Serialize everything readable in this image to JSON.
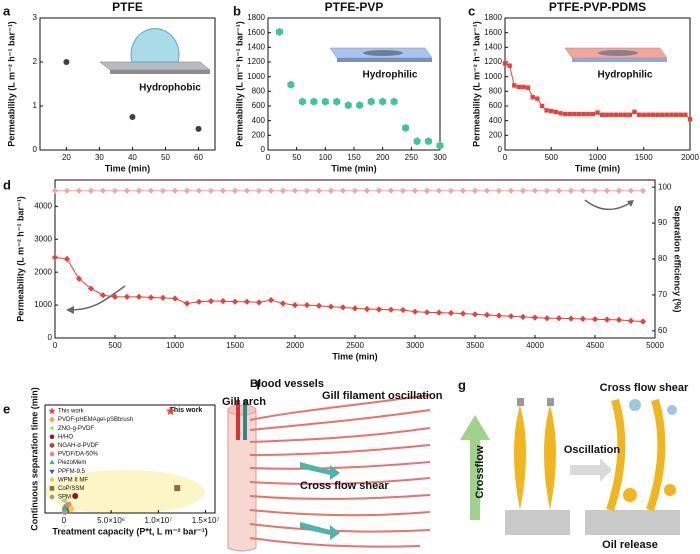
{
  "chart_data": [
    {
      "type": "scatter",
      "panel": "a",
      "title": "PTFE",
      "annotation": "Hydrophobic",
      "x_label": "Time (min)",
      "y_label": "Permeability (L m⁻² h⁻¹ bar⁻¹)",
      "xlim": [
        12,
        65
      ],
      "xticks": [
        20,
        30,
        40,
        50,
        60
      ],
      "ylim": [
        0,
        3
      ],
      "yticks": [
        0,
        1,
        2,
        3
      ],
      "series": [
        {
          "color": "#3a3f4a",
          "marker": "circle",
          "x": [
            20,
            40,
            60
          ],
          "values": [
            2.0,
            0.75,
            0.48
          ]
        }
      ]
    },
    {
      "type": "scatter",
      "panel": "b",
      "title": "PTFE-PVP",
      "annotation": "Hydrophilic",
      "x_label": "Time (min)",
      "y_label": "Permeability (L m⁻² h⁻¹ bar⁻¹)",
      "xlim": [
        0,
        300
      ],
      "xticks": [
        0,
        50,
        100,
        150,
        200,
        250,
        300
      ],
      "ylim": [
        0,
        1800
      ],
      "yticks": [
        0,
        200,
        400,
        600,
        800,
        1000,
        1200,
        1400,
        1600,
        1800
      ],
      "series": [
        {
          "color": "#3fc59a",
          "marker": "hexagon",
          "x": [
            20,
            40,
            60,
            80,
            100,
            120,
            140,
            160,
            180,
            200,
            220,
            240,
            260,
            280,
            300
          ],
          "values": [
            1610,
            890,
            660,
            660,
            660,
            660,
            610,
            610,
            660,
            660,
            660,
            300,
            120,
            120,
            60
          ]
        }
      ]
    },
    {
      "type": "line",
      "panel": "c",
      "title": "PTFE-PVP-PDMS",
      "annotation": "Hydrophilic",
      "x_label": "Time (min)",
      "y_label": "Permeability (L m⁻² h⁻¹ bar⁻¹)",
      "xlim": [
        0,
        2000
      ],
      "xticks": [
        0,
        500,
        1000,
        1500,
        2000
      ],
      "ylim": [
        0,
        1800
      ],
      "yticks": [
        0,
        200,
        400,
        600,
        800,
        1000,
        1200,
        1400,
        1600,
        1800
      ],
      "series": [
        {
          "color": "#e8413a",
          "marker": "square",
          "x": [
            0,
            50,
            100,
            150,
            200,
            250,
            300,
            350,
            400,
            450,
            500,
            550,
            600,
            650,
            700,
            750,
            800,
            850,
            900,
            950,
            1000,
            1050,
            1100,
            1150,
            1200,
            1250,
            1300,
            1350,
            1400,
            1450,
            1500,
            1550,
            1600,
            1650,
            1700,
            1750,
            1800,
            1850,
            1900,
            1950,
            2000
          ],
          "values": [
            1180,
            1150,
            880,
            860,
            860,
            850,
            720,
            700,
            600,
            540,
            530,
            520,
            500,
            490,
            490,
            490,
            490,
            490,
            490,
            490,
            510,
            480,
            480,
            480,
            480,
            480,
            480,
            480,
            520,
            480,
            480,
            480,
            480,
            480,
            480,
            480,
            480,
            480,
            480,
            480,
            420
          ]
        }
      ]
    },
    {
      "type": "line",
      "panel": "d",
      "x_label": "Time (min)",
      "y_label": "Permeability (L m⁻² h⁻¹ bar⁻¹)",
      "y2_label": "Separation efficiency (%)",
      "xlim": [
        0,
        5000
      ],
      "xticks": [
        0,
        500,
        1000,
        1500,
        2000,
        2500,
        3000,
        3500,
        4000,
        4500,
        5000
      ],
      "ylim": [
        0,
        4800
      ],
      "yticks": [
        0,
        1000,
        2000,
        3000,
        4000
      ],
      "y2lim": [
        58,
        102
      ],
      "y2ticks": [
        60,
        70,
        80,
        90,
        100
      ],
      "series": [
        {
          "color": "#e8413a",
          "marker": "diamond",
          "x": [
            0,
            100,
            200,
            300,
            400,
            500,
            600,
            700,
            800,
            900,
            1000,
            1100,
            1200,
            1300,
            1400,
            1500,
            1600,
            1700,
            1800,
            1900,
            2000,
            2100,
            2200,
            2300,
            2400,
            2500,
            2600,
            2700,
            2800,
            2900,
            3000,
            3100,
            3200,
            3300,
            3400,
            3500,
            3600,
            3700,
            3800,
            3900,
            4000,
            4100,
            4200,
            4300,
            4400,
            4500,
            4600,
            4700,
            4800,
            4900
          ],
          "values": [
            2450,
            2400,
            1800,
            1500,
            1300,
            1250,
            1250,
            1250,
            1230,
            1220,
            1200,
            1050,
            1100,
            1120,
            1120,
            1100,
            1100,
            1080,
            1150,
            1050,
            1000,
            1000,
            980,
            950,
            930,
            900,
            880,
            870,
            860,
            850,
            800,
            780,
            770,
            760,
            740,
            720,
            700,
            680,
            660,
            640,
            620,
            600,
            600,
            590,
            580,
            570,
            560,
            550,
            520,
            500
          ]
        },
        {
          "color": "#f4a5a0",
          "marker": "diamond",
          "axis": "y2",
          "x": [
            0,
            100,
            200,
            300,
            400,
            500,
            600,
            700,
            800,
            900,
            1000,
            1100,
            1200,
            1300,
            1400,
            1500,
            1600,
            1700,
            1800,
            1900,
            2000,
            2100,
            2200,
            2300,
            2400,
            2500,
            2600,
            2700,
            2800,
            2900,
            3000,
            3100,
            3200,
            3300,
            3400,
            3500,
            3600,
            3700,
            3800,
            3900,
            4000,
            4100,
            4200,
            4300,
            4400,
            4500,
            4600,
            4700,
            4800,
            4900
          ],
          "values": [
            99,
            99,
            99,
            99,
            99,
            99,
            99,
            99,
            99,
            99,
            99,
            99,
            99,
            99,
            99,
            99,
            99,
            99,
            99,
            99,
            99,
            99,
            99,
            99,
            99,
            99,
            99,
            99,
            99,
            99,
            99,
            99,
            99,
            99,
            99,
            99,
            99,
            99,
            99,
            99,
            99,
            99,
            99,
            99,
            99,
            99,
            99,
            99,
            99,
            99
          ]
        }
      ]
    },
    {
      "type": "scatter",
      "panel": "e",
      "annotation": "This work",
      "legend": true,
      "x_label": "Treatment capacity (P*t, L m⁻² bar⁻¹)",
      "y_label": "Continuous separation time (min)",
      "xlim": [
        -2000000,
        16000000
      ],
      "xticks": [
        0,
        {
          "value": 5000000,
          "label": "5.0×10⁶"
        },
        {
          "value": 10000000,
          "label": "1.0×10⁷"
        },
        {
          "value": 15000000,
          "label": "1.5×10⁷"
        }
      ],
      "ylim": [
        0,
        5200
      ],
      "series": [
        {
          "name": "This work",
          "color": "#e8413a",
          "marker": "star",
          "x": [
            11300000
          ],
          "values": [
            4900
          ]
        },
        {
          "name": "PVDF-pHEMAgel-pSBbrush",
          "color": "#f4a460",
          "marker": "diamond",
          "x": [
            200000
          ],
          "values": [
            300
          ]
        },
        {
          "name": "ZNG-g-PVDF",
          "color": "#a8d08d",
          "marker": "trileft",
          "x": [
            100000
          ],
          "values": [
            600
          ]
        },
        {
          "name": "H/HO",
          "color": "#8b1a1a",
          "marker": "circle",
          "x": [
            1200000
          ],
          "values": [
            820
          ]
        },
        {
          "name": "NGAH-d-PVDF",
          "color": "#a0522d",
          "marker": "hexagon",
          "x": [
            300000
          ],
          "values": [
            150
          ]
        },
        {
          "name": "PVDF/DA-50%",
          "color": "#f08080",
          "marker": "circle",
          "x": [
            500000
          ],
          "values": [
            400
          ]
        },
        {
          "name": "PiezoMem",
          "color": "#3cb371",
          "marker": "triangle",
          "x": [
            100000
          ],
          "values": [
            250
          ]
        },
        {
          "name": "PPFM-9.5",
          "color": "#2b5fad",
          "marker": "tridown",
          "x": [
            200000
          ],
          "values": [
            100
          ]
        },
        {
          "name": "WPM II MF",
          "color": "#f2d03b",
          "marker": "circle",
          "x": [
            800000
          ],
          "values": [
            200
          ]
        },
        {
          "name": "CoP/SSM",
          "color": "#8b6b4a",
          "marker": "square",
          "x": [
            12000000
          ],
          "values": [
            1200
          ]
        },
        {
          "name": "SPM",
          "color": "#9a9a9a",
          "marker": "circle",
          "x": [
            100000
          ],
          "values": [
            50
          ]
        }
      ]
    }
  ],
  "diagrams": {
    "f": {
      "panel": "f",
      "labels": [
        "Gill arch",
        "Blood vessels",
        "Gill filament oscillation",
        "Cross flow shear"
      ]
    },
    "g": {
      "panel": "g",
      "labels": [
        "Crossflow",
        "Oscillation",
        "Cross flow shear",
        "Oil release"
      ]
    }
  }
}
